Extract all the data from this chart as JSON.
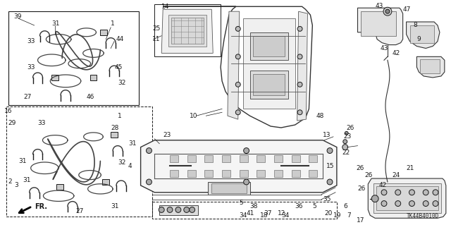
{
  "background_color": "#ffffff",
  "diagram_code": "TK44B4010D",
  "figsize": [
    6.4,
    3.19
  ],
  "dpi": 100
}
